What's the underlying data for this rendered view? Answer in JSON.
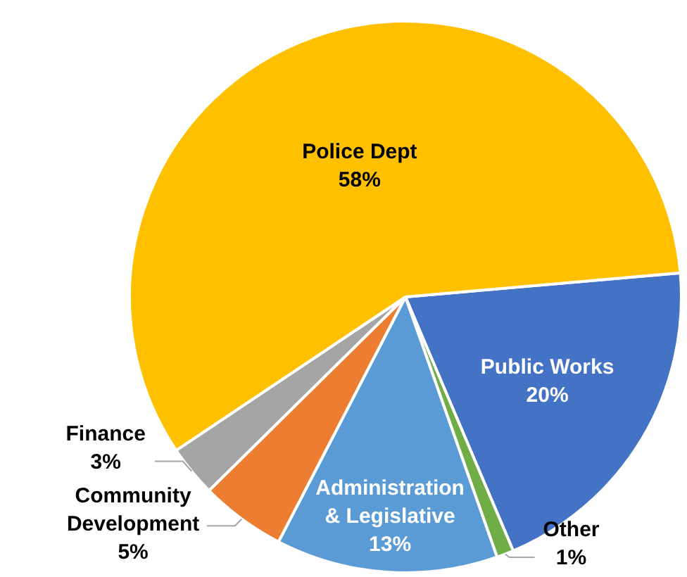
{
  "chart_data": {
    "type": "pie",
    "categories": [
      "Public Works",
      "Other",
      "Administration & Legislative",
      "Community Development",
      "Finance",
      "Police Dept"
    ],
    "values": [
      20,
      1,
      13,
      5,
      3,
      58
    ],
    "colors": [
      "#4472c4",
      "#70ad47",
      "#5b9bd5",
      "#ed7d31",
      "#a5a5a5",
      "#ffc000"
    ],
    "value_labels": [
      "20%",
      "1%",
      "13%",
      "5%",
      "3%",
      "58%"
    ],
    "legend": false
  }
}
